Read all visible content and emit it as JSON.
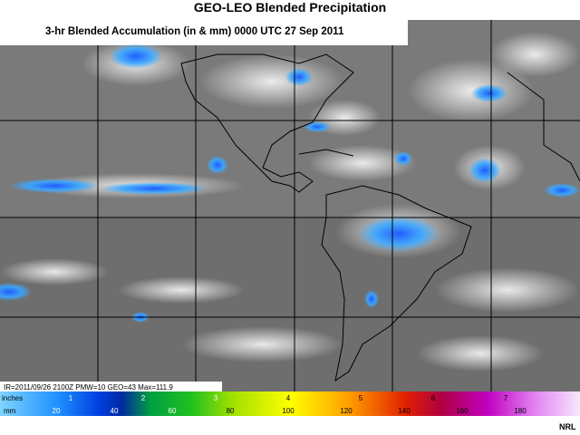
{
  "header": {
    "title": "GEO-LEO Blended Precipitation",
    "subtitle": "3-hr Blended Accumulation (in & mm)  0000 UTC  27 Sep 2011"
  },
  "info": "IR=2011/09/26 2100Z PMW=10 GEO=43 Max=111.9",
  "colorbar": {
    "inches_label": "inches",
    "mm_label": "mm",
    "inches": [
      "1",
      "2",
      "3",
      "4",
      "5",
      "6",
      "7"
    ],
    "mm": [
      "20",
      "40",
      "60",
      "80",
      "100",
      "120",
      "140",
      "160",
      "180"
    ]
  },
  "credit": "NRL"
}
